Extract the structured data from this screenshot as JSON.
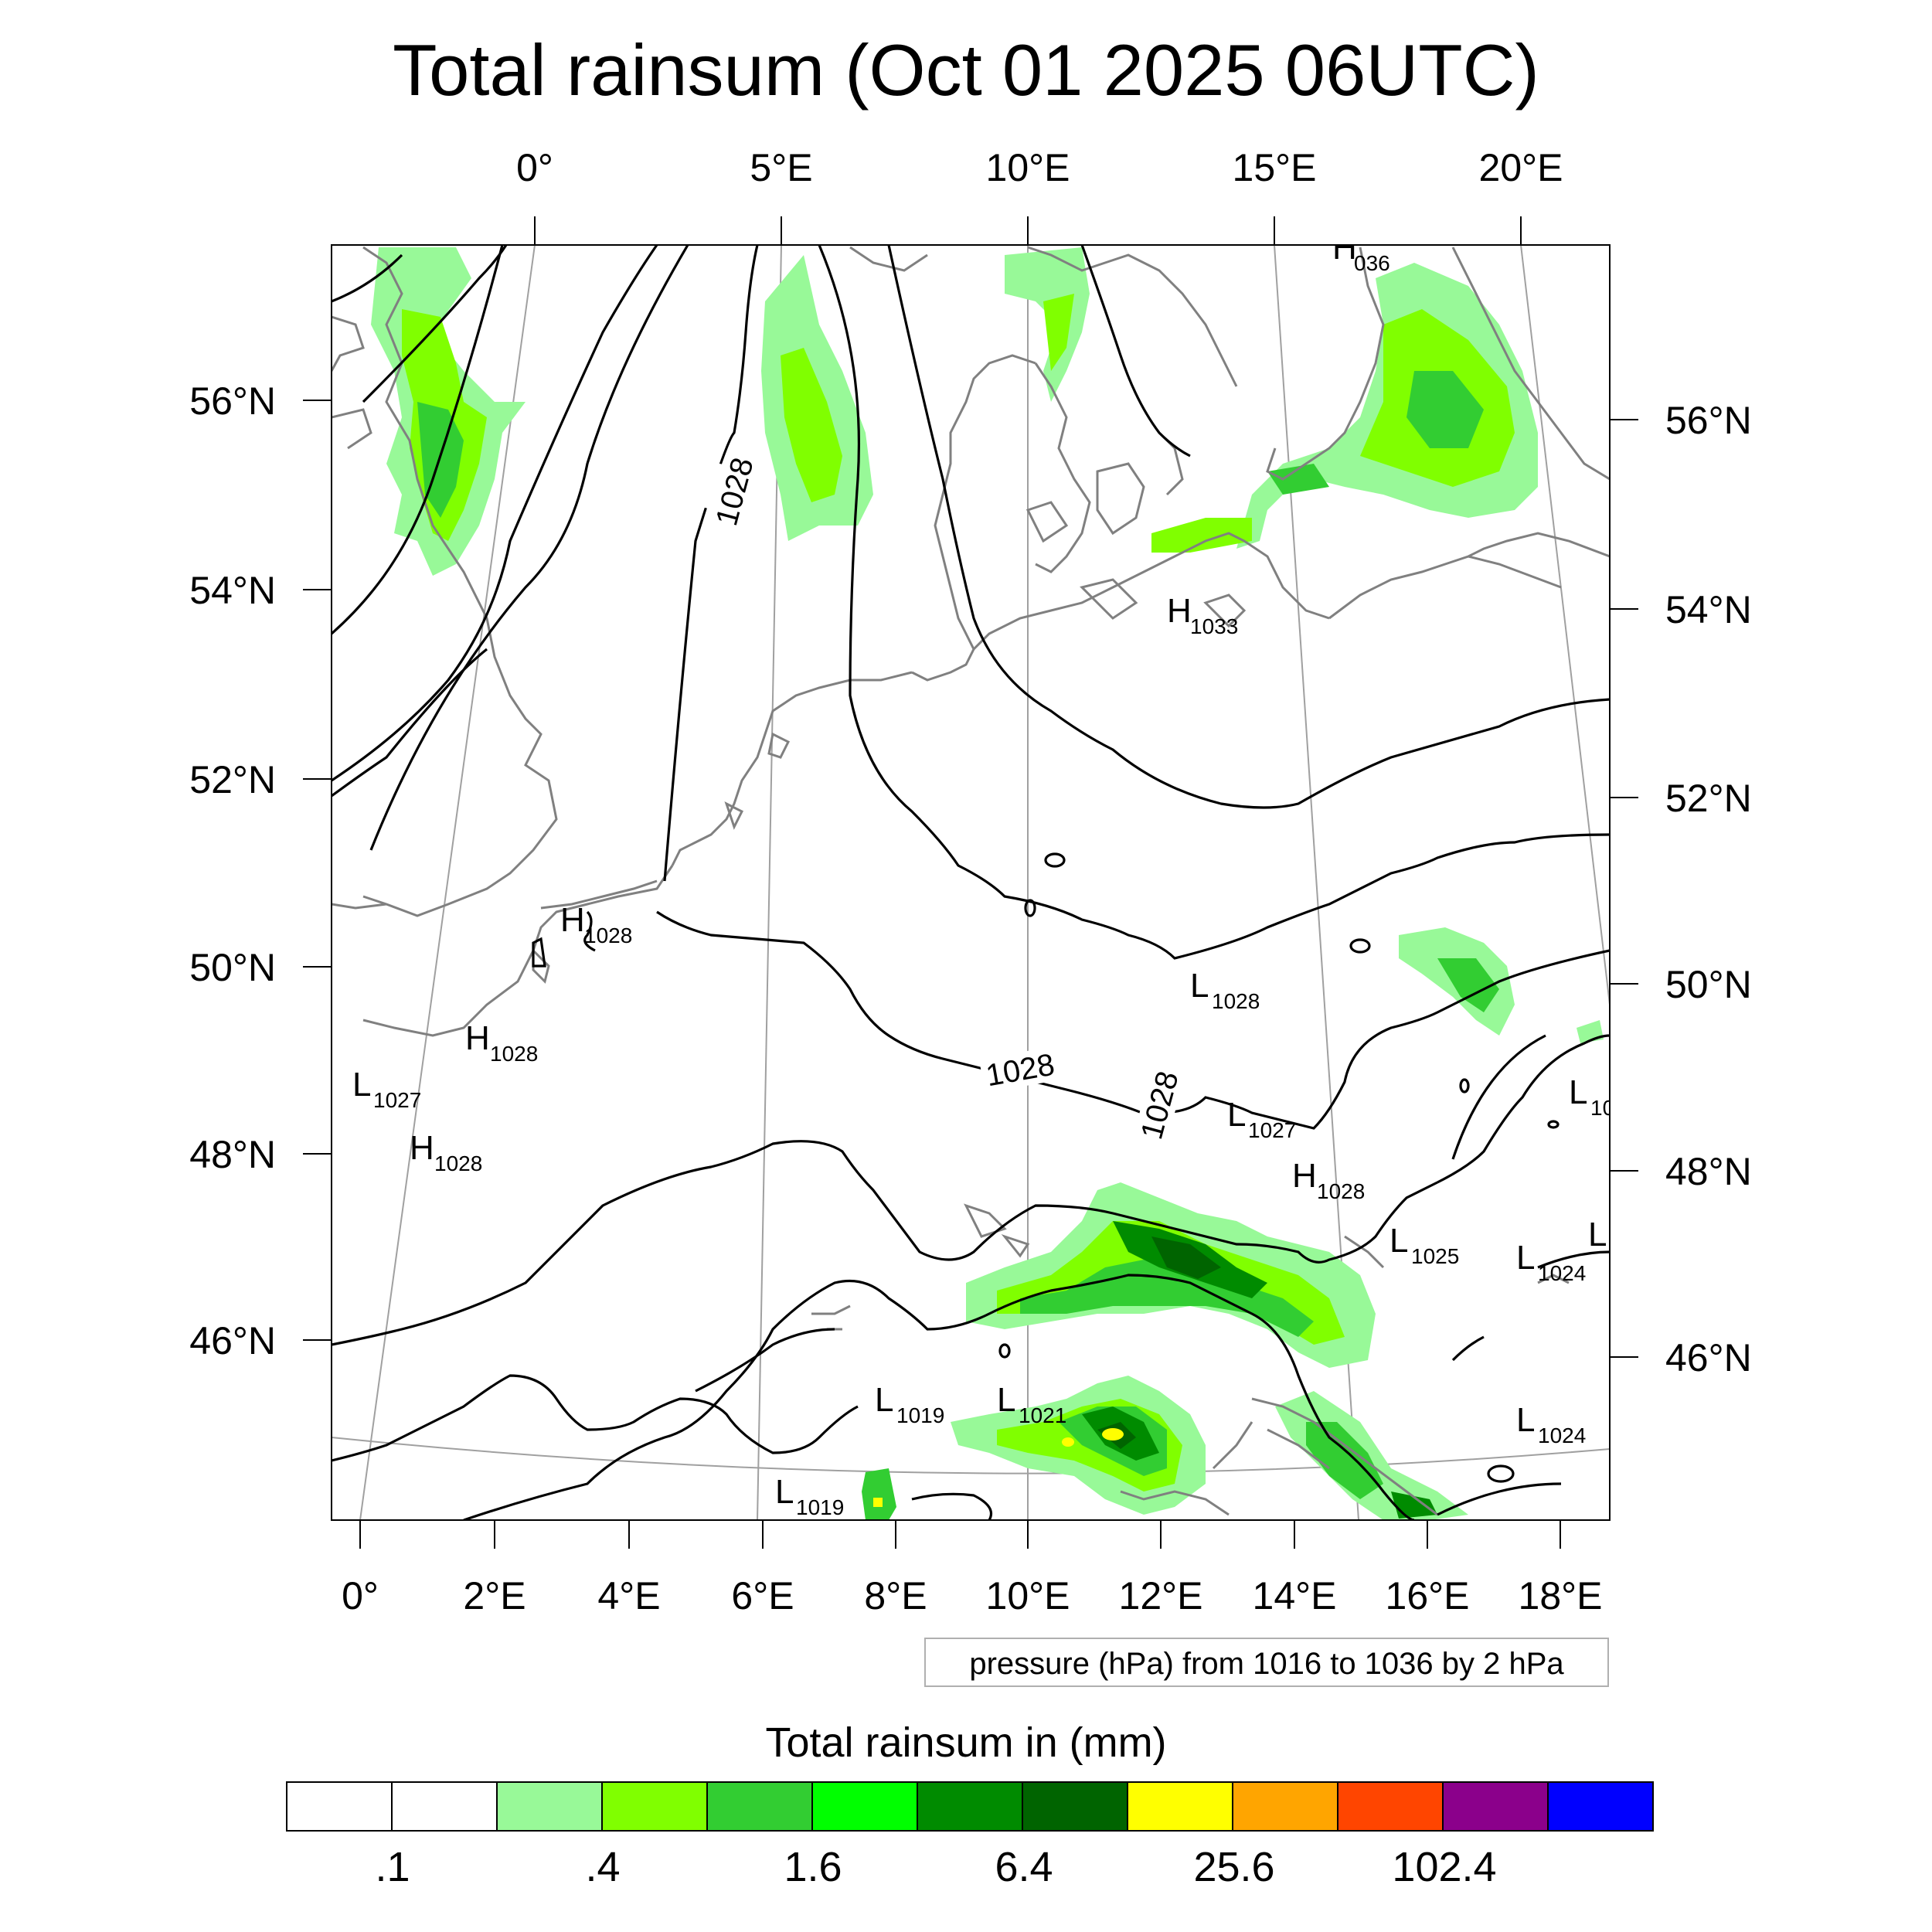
{
  "title": "Total rainsum (Oct 01 2025 06UTC)",
  "map": {
    "top_lon_labels": [
      {
        "text": "0°",
        "lon": 0
      },
      {
        "text": "5°E",
        "lon": 5
      },
      {
        "text": "10°E",
        "lon": 10
      },
      {
        "text": "15°E",
        "lon": 15
      },
      {
        "text": "20°E",
        "lon": 20
      }
    ],
    "bottom_lon_labels": [
      {
        "text": "0°",
        "lon": 0
      },
      {
        "text": "2°E",
        "lon": 2
      },
      {
        "text": "4°E",
        "lon": 4
      },
      {
        "text": "6°E",
        "lon": 6
      },
      {
        "text": "8°E",
        "lon": 8
      },
      {
        "text": "10°E",
        "lon": 10
      },
      {
        "text": "12°E",
        "lon": 12
      },
      {
        "text": "14°E",
        "lon": 14
      },
      {
        "text": "16°E",
        "lon": 16
      },
      {
        "text": "18°E",
        "lon": 18
      }
    ],
    "left_lat_labels": [
      {
        "text": "56°N",
        "lat": 56
      },
      {
        "text": "54°N",
        "lat": 54
      },
      {
        "text": "52°N",
        "lat": 52
      },
      {
        "text": "50°N",
        "lat": 50
      },
      {
        "text": "48°N",
        "lat": 48
      },
      {
        "text": "46°N",
        "lat": 46
      }
    ],
    "right_lat_labels": [
      {
        "text": "56°N",
        "lat": 56
      },
      {
        "text": "54°N",
        "lat": 54
      },
      {
        "text": "52°N",
        "lat": 52
      },
      {
        "text": "50°N",
        "lat": 50
      },
      {
        "text": "48°N",
        "lat": 48
      },
      {
        "text": "46°N",
        "lat": 46
      }
    ],
    "pressure_centers": [
      {
        "type": "H",
        "value": "036"
      },
      {
        "type": "H",
        "value": "1033"
      },
      {
        "type": "H",
        "value": "1028"
      },
      {
        "type": "L",
        "value": "1028"
      },
      {
        "type": "H",
        "value": "1028"
      },
      {
        "type": "L",
        "value": "1027"
      },
      {
        "type": "H",
        "value": "1028"
      },
      {
        "type": "L",
        "value": "1027"
      },
      {
        "type": "L",
        "value": "10"
      },
      {
        "type": "H",
        "value": "1028"
      },
      {
        "type": "L",
        "value": "1025"
      },
      {
        "type": "L",
        "value": "1024"
      },
      {
        "type": "L",
        "value": ""
      },
      {
        "type": "L",
        "value": "1019"
      },
      {
        "type": "L",
        "value": "1021"
      },
      {
        "type": "L",
        "value": "1024"
      },
      {
        "type": "L",
        "value": "1019"
      }
    ],
    "contour_labels": [
      "1028",
      "1028",
      "1028"
    ],
    "colors": {
      "coast": "#808080",
      "isobar": "#000000",
      "grid": "#a0a0a0"
    }
  },
  "info_box": "pressure (hPa) from 1016 to 1036 by 2 hPa",
  "legend": {
    "title": "Total rainsum in (mm)",
    "colors": [
      "#ffffff",
      "#ffffff",
      "#98f998",
      "#80ff00",
      "#32cd32",
      "#00ff00",
      "#008b00",
      "#006400",
      "#ffff00",
      "#ffa500",
      "#ff4500",
      "#8b008b",
      "#0000ff"
    ],
    "labels": [
      ".1",
      ".4",
      "1.6",
      "6.4",
      "25.6",
      "102.4"
    ]
  }
}
